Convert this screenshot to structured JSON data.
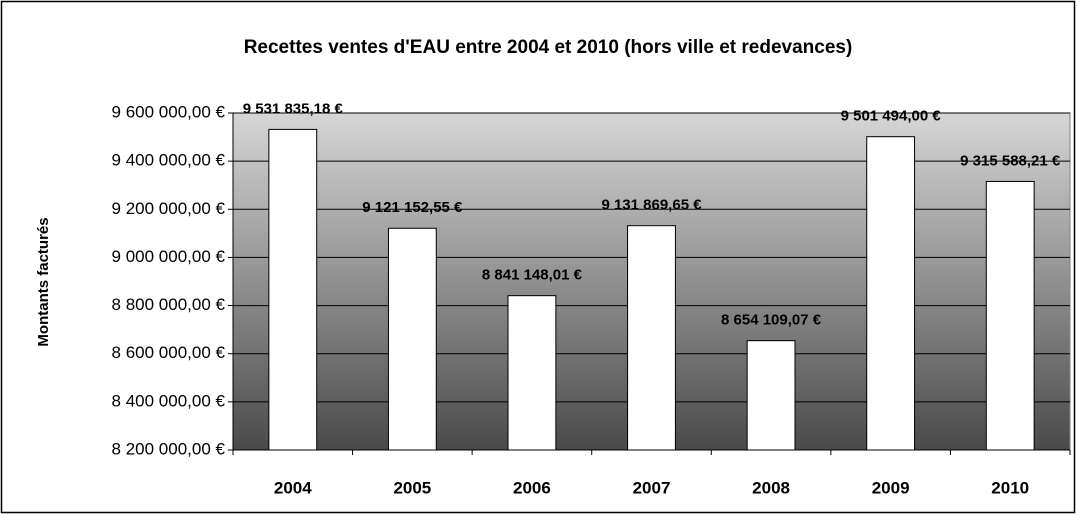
{
  "chart_data": {
    "type": "bar",
    "title": "Recettes ventes d'EAU entre 2004 et 2010 (hors ville et redevances)",
    "y_label": "Montants facturés",
    "categories": [
      "2004",
      "2005",
      "2006",
      "2007",
      "2008",
      "2009",
      "2010"
    ],
    "values": [
      9531835.18,
      9121152.55,
      8841148.01,
      9131869.65,
      8654109.07,
      9501494.0,
      9315588.21
    ],
    "value_labels": [
      "9 531 835,18 €",
      "9 121 152,55 €",
      "8 841 148,01 €",
      "9 131 869,65 €",
      "8 654 109,07 €",
      "9 501 494,00 €",
      "9 315 588,21 €"
    ],
    "color": "#ffffff",
    "ylim": [
      8200000,
      9600000
    ],
    "yticks": [
      {
        "value": 8200000,
        "label": "8 200 000,00 €"
      },
      {
        "value": 8400000,
        "label": "8 400 000,00 €"
      },
      {
        "value": 8600000,
        "label": "8 600 000,00 €"
      },
      {
        "value": 8800000,
        "label": "8 800 000,00 €"
      },
      {
        "value": 9000000,
        "label": "9 000 000,00 €"
      },
      {
        "value": 9200000,
        "label": "9 200 000,00 €"
      },
      {
        "value": 9400000,
        "label": "9 400 000,00 €"
      },
      {
        "value": 9600000,
        "label": "9 600 000,00 €"
      }
    ],
    "grid": true
  }
}
